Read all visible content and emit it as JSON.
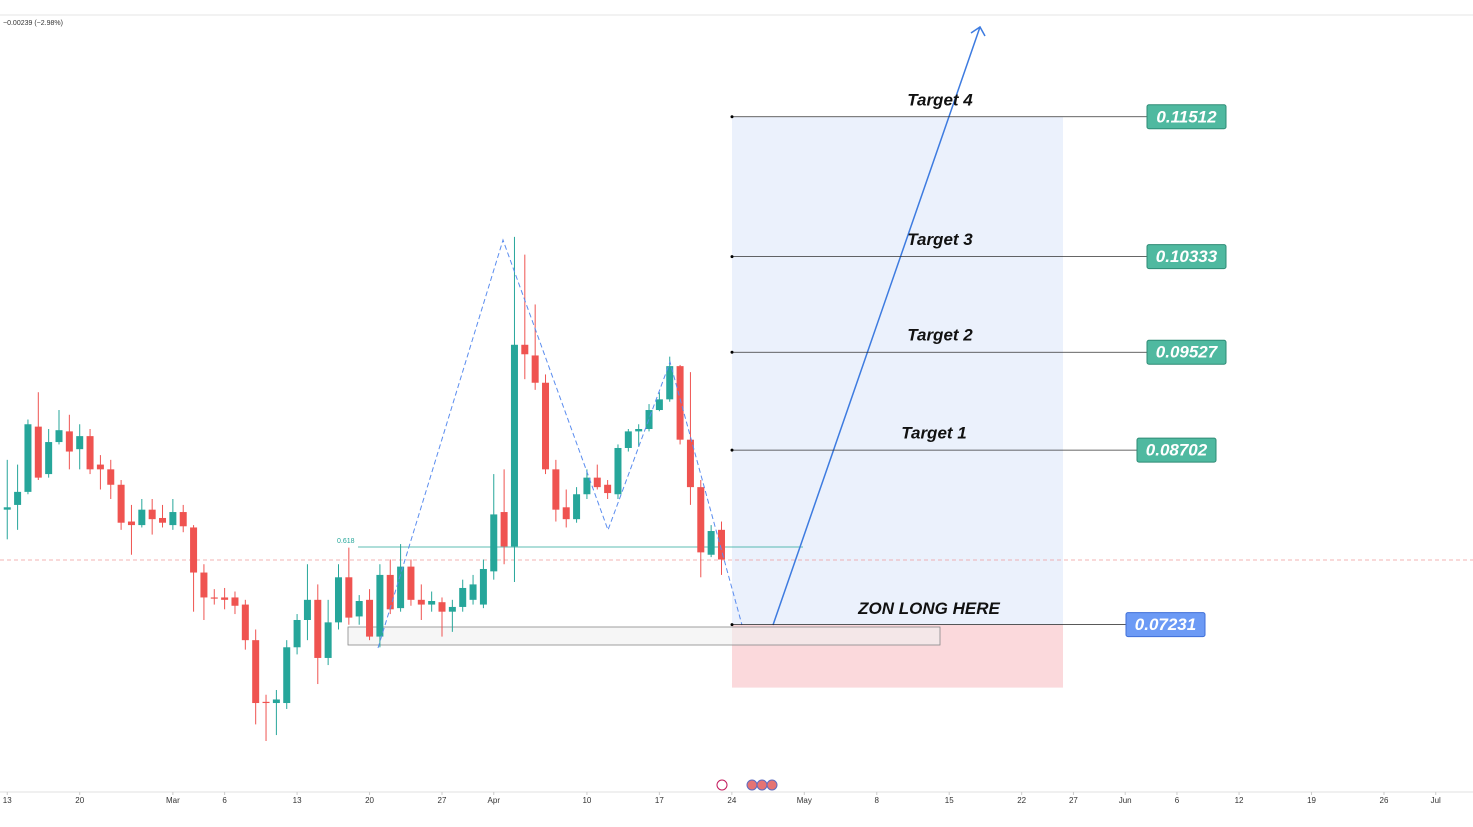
{
  "chart_data": {
    "type": "candlestick",
    "change_text": "−0.00239 (−2.98%)",
    "fib_label": "0.618",
    "x": [
      0,
      1,
      2,
      3,
      4,
      5,
      6,
      7,
      8,
      9,
      10,
      11,
      12,
      13,
      14,
      15,
      16,
      17,
      18,
      19,
      20,
      21,
      22,
      23,
      24,
      25,
      26,
      27,
      28,
      29,
      30,
      31,
      32,
      33,
      34,
      35,
      36,
      37,
      38,
      39,
      40,
      41,
      42,
      43,
      44,
      45,
      46,
      47,
      48,
      49,
      50,
      51,
      52,
      53,
      54,
      55,
      56,
      57,
      58,
      59,
      60,
      61,
      62,
      63,
      64,
      65,
      66,
      67,
      68,
      69
    ],
    "open": [
      0.082,
      0.0824,
      0.0835,
      0.089,
      0.085,
      0.0877,
      0.0886,
      0.0871,
      0.0882,
      0.0858,
      0.0854,
      0.0841,
      0.081,
      0.0807,
      0.082,
      0.0813,
      0.0807,
      0.0818,
      0.0805,
      0.0767,
      0.0746,
      0.0746,
      0.0746,
      0.074,
      0.071,
      0.0658,
      0.0657,
      0.0657,
      0.0704,
      0.0727,
      0.0744,
      0.0695,
      0.0725,
      0.0763,
      0.073,
      0.0744,
      0.0713,
      0.0765,
      0.0737,
      0.0772,
      0.0744,
      0.074,
      0.0742,
      0.0734,
      0.0738,
      0.0744,
      0.074,
      0.0768,
      0.0818,
      0.0789,
      0.0959,
      0.095,
      0.0927,
      0.0854,
      0.0822,
      0.0812,
      0.0833,
      0.0847,
      0.0841,
      0.0833,
      0.0872,
      0.0886,
      0.0888,
      0.0904,
      0.0913,
      0.0941,
      0.0879,
      0.0839,
      0.0782,
      0.0803
    ],
    "high": [
      0.0862,
      0.0858,
      0.0896,
      0.0919,
      0.0888,
      0.0904,
      0.09,
      0.0892,
      0.0888,
      0.0866,
      0.0862,
      0.0845,
      0.0824,
      0.0829,
      0.0829,
      0.0824,
      0.0829,
      0.0824,
      0.0807,
      0.0774,
      0.0753,
      0.0754,
      0.0751,
      0.0744,
      0.0719,
      0.0664,
      0.0668,
      0.071,
      0.0732,
      0.0774,
      0.0757,
      0.0744,
      0.0774,
      0.0788,
      0.0748,
      0.0753,
      0.0774,
      0.0778,
      0.0791,
      0.0778,
      0.0757,
      0.0751,
      0.0746,
      0.0744,
      0.0761,
      0.0765,
      0.0778,
      0.085,
      0.0854,
      0.105,
      0.1035,
      0.0993,
      0.0934,
      0.0862,
      0.0837,
      0.0839,
      0.0854,
      0.0858,
      0.0845,
      0.0875,
      0.0888,
      0.0892,
      0.0909,
      0.0919,
      0.0949,
      0.0942,
      0.0936,
      0.0845,
      0.0807,
      0.081
    ],
    "low": [
      0.0795,
      0.0803,
      0.0833,
      0.0845,
      0.0847,
      0.0875,
      0.0854,
      0.0854,
      0.085,
      0.0837,
      0.0829,
      0.0803,
      0.0782,
      0.0805,
      0.0799,
      0.0805,
      0.0803,
      0.0801,
      0.0734,
      0.0727,
      0.074,
      0.0736,
      0.0732,
      0.0702,
      0.0639,
      0.0625,
      0.063,
      0.0652,
      0.0698,
      0.071,
      0.0673,
      0.0689,
      0.0719,
      0.0723,
      0.0723,
      0.071,
      0.0704,
      0.0732,
      0.0734,
      0.0739,
      0.0727,
      0.0734,
      0.0713,
      0.0717,
      0.0734,
      0.074,
      0.0737,
      0.0761,
      0.0774,
      0.0759,
      0.093,
      0.0921,
      0.085,
      0.081,
      0.0805,
      0.0809,
      0.0829,
      0.0837,
      0.0829,
      0.0829,
      0.0869,
      0.0873,
      0.0886,
      0.0903,
      0.0911,
      0.0875,
      0.0824,
      0.0763,
      0.078,
      0.0765
    ],
    "close": [
      0.0822,
      0.0835,
      0.0892,
      0.0847,
      0.0877,
      0.0887,
      0.0869,
      0.0882,
      0.0854,
      0.0854,
      0.0841,
      0.0809,
      0.0807,
      0.082,
      0.0812,
      0.0809,
      0.0818,
      0.0806,
      0.0767,
      0.0746,
      0.0745,
      0.0744,
      0.0739,
      0.071,
      0.0657,
      0.0657,
      0.066,
      0.0704,
      0.0727,
      0.0744,
      0.0695,
      0.0725,
      0.0763,
      0.0729,
      0.0743,
      0.0713,
      0.0765,
      0.0736,
      0.0772,
      0.0744,
      0.074,
      0.0743,
      0.0734,
      0.0738,
      0.0754,
      0.0757,
      0.077,
      0.0816,
      0.0789,
      0.0959,
      0.0951,
      0.0927,
      0.0854,
      0.082,
      0.0812,
      0.0833,
      0.0847,
      0.0839,
      0.0834,
      0.0872,
      0.0886,
      0.0888,
      0.0904,
      0.0913,
      0.0941,
      0.0879,
      0.0839,
      0.0784,
      0.0802,
      0.0778
    ],
    "up_color": "#26a69a",
    "down_color": "#ef5350",
    "xlim": [
      -0.7,
      141.6
    ],
    "ylim": [
      0.0582,
      0.1237
    ],
    "xticks": [
      {
        "value": 0,
        "label": "13"
      },
      {
        "value": 7,
        "label": "20"
      },
      {
        "value": 16,
        "label": "Mar"
      },
      {
        "value": 21,
        "label": "6"
      },
      {
        "value": 28,
        "label": "13"
      },
      {
        "value": 35,
        "label": "20"
      },
      {
        "value": 42,
        "label": "27"
      },
      {
        "value": 47,
        "label": "Apr"
      },
      {
        "value": 56,
        "label": "10"
      },
      {
        "value": 63,
        "label": "17"
      },
      {
        "value": 70,
        "label": "24"
      },
      {
        "value": 77,
        "label": "May"
      },
      {
        "value": 84,
        "label": "8"
      },
      {
        "value": 91,
        "label": "15"
      },
      {
        "value": 98,
        "label": "22"
      },
      {
        "value": 103,
        "label": "27"
      },
      {
        "value": 108,
        "label": "Jun"
      },
      {
        "value": 113,
        "label": "6"
      },
      {
        "value": 119,
        "label": "12"
      },
      {
        "value": 126,
        "label": "19"
      },
      {
        "value": 133,
        "label": "26"
      },
      {
        "value": 138,
        "label": "Jul"
      }
    ],
    "targets": [
      {
        "label": "Target 4",
        "price": 0.11512
      },
      {
        "label": "Target 3",
        "price": 0.10333
      },
      {
        "label": "Target 2",
        "price": 0.09527
      },
      {
        "label": "Target 1",
        "price": 0.08702
      }
    ],
    "entry": {
      "label": "ZON LONG HERE",
      "price": 0.07231
    },
    "stop": 0.067
  }
}
